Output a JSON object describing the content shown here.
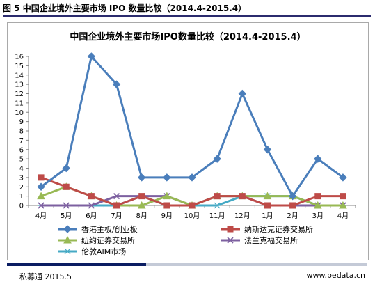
{
  "caption": "图 5  中国企业境外主要市场 IPO 数量比较（2014.4-2015.4）",
  "footer": {
    "source": "私募通  2015.5",
    "website": "www.pedata.cn"
  },
  "chart_data": {
    "type": "line",
    "title": "中国企业境外主要市场IPO数量比较（2014.4-2015.4）",
    "categories": [
      "4月",
      "5月",
      "6月",
      "7月",
      "8月",
      "9月",
      "10月",
      "11月",
      "12月",
      "1月",
      "2月",
      "3月",
      "4月"
    ],
    "ylim": [
      0,
      16
    ],
    "yticks": [
      0,
      1,
      2,
      3,
      4,
      5,
      6,
      7,
      8,
      9,
      10,
      11,
      12,
      13,
      14,
      15,
      16
    ],
    "grid": false,
    "legend_position": "bottom",
    "series": [
      {
        "name": "香港主板/创业板",
        "color": "#4a7ebb",
        "marker": "diamond",
        "values": [
          2,
          4,
          16,
          13,
          3,
          3,
          3,
          5,
          12,
          6,
          1,
          5,
          3
        ]
      },
      {
        "name": "纳斯达克证券交易所",
        "color": "#be4b48",
        "marker": "square",
        "values": [
          3,
          2,
          1,
          0,
          1,
          0,
          0,
          1,
          1,
          0,
          0,
          1,
          1
        ]
      },
      {
        "name": "纽约证券交易所",
        "color": "#98b954",
        "marker": "triangle",
        "values": [
          1,
          2,
          1,
          0,
          0,
          1,
          0,
          1,
          1,
          1,
          1,
          0,
          0
        ]
      },
      {
        "name": "法兰克福交易所",
        "color": "#7d60a0",
        "marker": "x",
        "values": [
          0,
          0,
          0,
          1,
          1,
          1,
          0,
          1,
          1,
          0,
          0,
          0,
          0
        ]
      },
      {
        "name": "伦敦AIM市场",
        "color": "#46aac5",
        "marker": "asterisk",
        "values": [
          0,
          0,
          0,
          0,
          1,
          0,
          0,
          0,
          1,
          1,
          1,
          0,
          0
        ]
      }
    ]
  }
}
